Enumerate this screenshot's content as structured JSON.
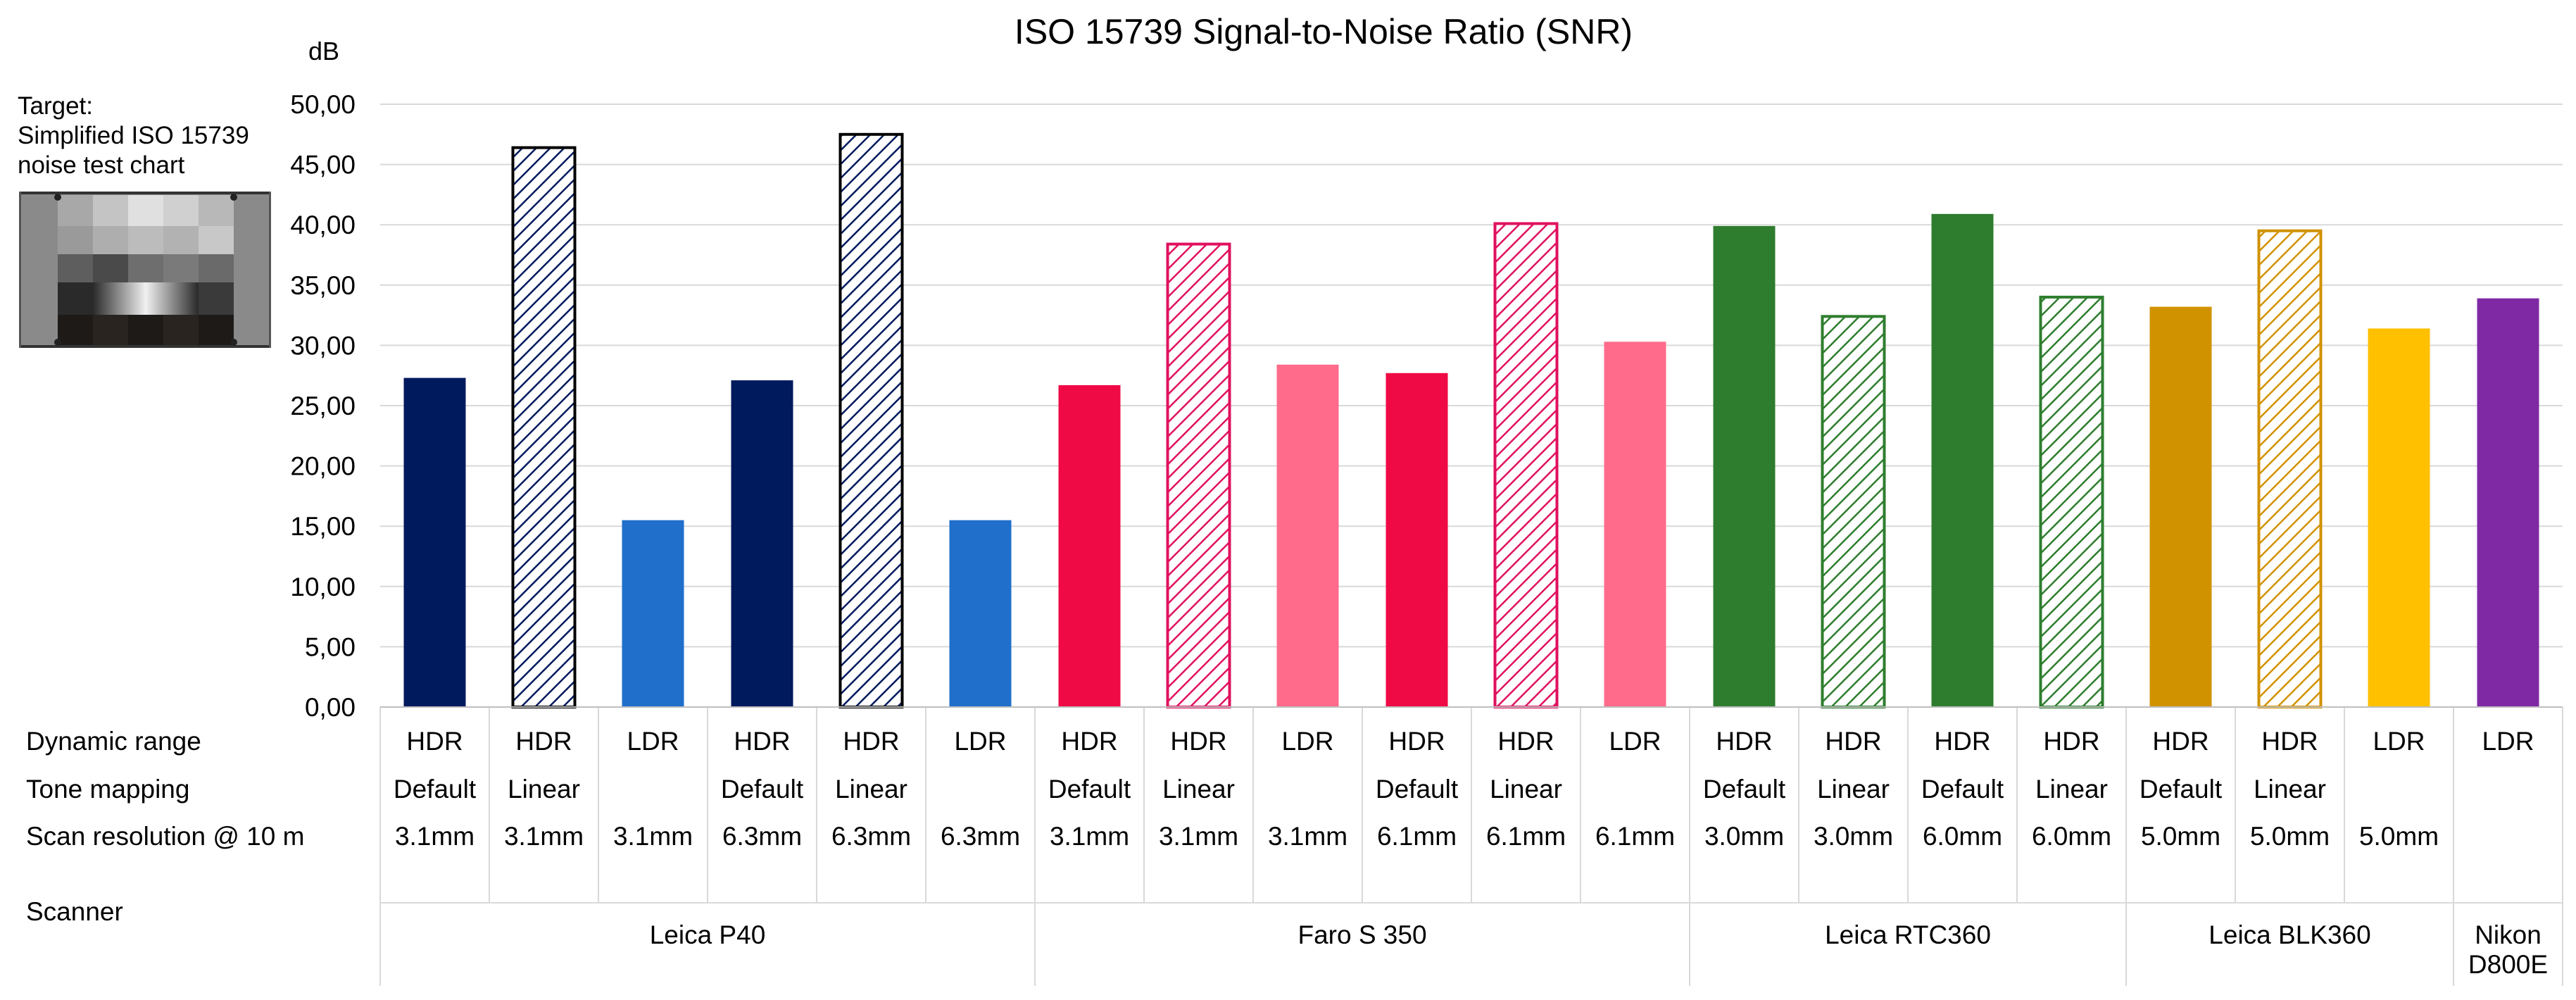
{
  "chart_data": {
    "type": "bar",
    "title": "ISO 15739 Signal-to-Noise Ratio (SNR)",
    "ylabel": "dB",
    "ylim": [
      0,
      50
    ],
    "ytick_labels": [
      "0,00",
      "5,00",
      "10,00",
      "15,00",
      "20,00",
      "25,00",
      "30,00",
      "35,00",
      "40,00",
      "45,00",
      "50,00"
    ],
    "grid": true,
    "row_labels": {
      "dynamic_range": "Dynamic range",
      "tone_mapping": "Tone mapping",
      "scan_resolution": "Scan resolution @ 10 m",
      "scanner": "Scanner"
    },
    "bars": [
      {
        "dynamic_range": "HDR",
        "tone_mapping": "Default",
        "resolution": "3.1mm",
        "value": 27.3,
        "style": "solid",
        "color": "#001a5e"
      },
      {
        "dynamic_range": "HDR",
        "tone_mapping": "Linear",
        "resolution": "3.1mm",
        "value": 46.4,
        "style": "hatched",
        "color": "#001a5e"
      },
      {
        "dynamic_range": "LDR",
        "tone_mapping": "",
        "resolution": "3.1mm",
        "value": 15.5,
        "style": "solid",
        "color": "#1f6fcb"
      },
      {
        "dynamic_range": "HDR",
        "tone_mapping": "Default",
        "resolution": "6.3mm",
        "value": 27.1,
        "style": "solid",
        "color": "#001a5e"
      },
      {
        "dynamic_range": "HDR",
        "tone_mapping": "Linear",
        "resolution": "6.3mm",
        "value": 47.5,
        "style": "hatched",
        "color": "#001a5e"
      },
      {
        "dynamic_range": "LDR",
        "tone_mapping": "",
        "resolution": "6.3mm",
        "value": 15.5,
        "style": "solid",
        "color": "#1f6fcb"
      },
      {
        "dynamic_range": "HDR",
        "tone_mapping": "Default",
        "resolution": "3.1mm",
        "value": 26.7,
        "style": "solid",
        "color": "#ef0a46"
      },
      {
        "dynamic_range": "HDR",
        "tone_mapping": "Linear",
        "resolution": "3.1mm",
        "value": 38.4,
        "style": "hatched",
        "color": "#e0115f"
      },
      {
        "dynamic_range": "LDR",
        "tone_mapping": "",
        "resolution": "3.1mm",
        "value": 28.4,
        "style": "solid",
        "color": "#ff6b8b"
      },
      {
        "dynamic_range": "HDR",
        "tone_mapping": "Default",
        "resolution": "6.1mm",
        "value": 27.7,
        "style": "solid",
        "color": "#ef0a46"
      },
      {
        "dynamic_range": "HDR",
        "tone_mapping": "Linear",
        "resolution": "6.1mm",
        "value": 40.1,
        "style": "hatched",
        "color": "#e0115f"
      },
      {
        "dynamic_range": "LDR",
        "tone_mapping": "",
        "resolution": "6.1mm",
        "value": 30.3,
        "style": "solid",
        "color": "#ff6b8b"
      },
      {
        "dynamic_range": "HDR",
        "tone_mapping": "Default",
        "resolution": "3.0mm",
        "value": 39.9,
        "style": "solid",
        "color": "#2e7d2e"
      },
      {
        "dynamic_range": "HDR",
        "tone_mapping": "Linear",
        "resolution": "3.0mm",
        "value": 32.4,
        "style": "hatched",
        "color": "#2e7d2e"
      },
      {
        "dynamic_range": "HDR",
        "tone_mapping": "Default",
        "resolution": "6.0mm",
        "value": 40.9,
        "style": "solid",
        "color": "#2e7d2e"
      },
      {
        "dynamic_range": "HDR",
        "tone_mapping": "Linear",
        "resolution": "6.0mm",
        "value": 34.0,
        "style": "hatched",
        "color": "#2e7d2e"
      },
      {
        "dynamic_range": "HDR",
        "tone_mapping": "Default",
        "resolution": "5.0mm",
        "value": 33.2,
        "style": "solid",
        "color": "#d19200"
      },
      {
        "dynamic_range": "HDR",
        "tone_mapping": "Linear",
        "resolution": "5.0mm",
        "value": 39.5,
        "style": "hatched",
        "color": "#d19200"
      },
      {
        "dynamic_range": "LDR",
        "tone_mapping": "",
        "resolution": "5.0mm",
        "value": 31.4,
        "style": "solid",
        "color": "#ffc000"
      },
      {
        "dynamic_range": "LDR",
        "tone_mapping": "",
        "resolution": "",
        "value": 33.9,
        "style": "solid",
        "color": "#7f2aa4"
      }
    ],
    "scanners": [
      {
        "name": "Leica P40",
        "count": 6
      },
      {
        "name": "Faro S 350",
        "count": 6
      },
      {
        "name": "Leica RTC360",
        "count": 4
      },
      {
        "name": "Leica BLK360",
        "count": 3
      },
      {
        "name": "Nikon D800E",
        "count": 1
      }
    ]
  },
  "target": {
    "label_line1": "Target:",
    "label_line2": "Simplified ISO 15739",
    "label_line3": "noise test chart"
  }
}
